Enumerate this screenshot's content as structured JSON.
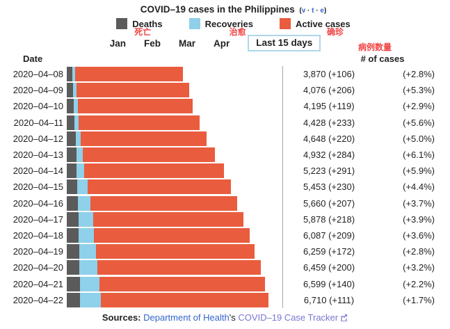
{
  "title": {
    "main": "COVID–19 cases in the Philippines",
    "vte_open": "(",
    "vte_links": [
      "v",
      "t",
      "e"
    ],
    "vte_sep": " · ",
    "vte_close": ")"
  },
  "legend": {
    "items": [
      {
        "label": "Deaths",
        "color": "#5b5b5b",
        "annotation": "死亡"
      },
      {
        "label": "Recoveries",
        "color": "#8fd0ea",
        "annotation": "治愈"
      },
      {
        "label": "Active cases",
        "color": "#e95c3e",
        "annotation": "确珍"
      }
    ]
  },
  "tabs": {
    "months": [
      "Jan",
      "Feb",
      "Mar",
      "Apr"
    ],
    "active": "Last 15 days"
  },
  "column_headers": {
    "date": "Date",
    "cases": "# of cases",
    "cases_annotation": "病例数量"
  },
  "chart_data": {
    "type": "bar",
    "orientation": "horizontal",
    "stacked": true,
    "title": "COVID–19 cases in the Philippines",
    "xlabel": "# of cases",
    "ylabel": "Date",
    "xlim": [
      0,
      7175
    ],
    "grid": false,
    "legend_position": "top",
    "categories": [
      "2020–04–08",
      "2020–04–09",
      "2020–04–10",
      "2020–04–11",
      "2020–04–12",
      "2020–04–13",
      "2020–04–14",
      "2020–04–15",
      "2020–04–16",
      "2020–04–17",
      "2020–04–18",
      "2020–04–19",
      "2020–04–20",
      "2020–04–21",
      "2020–04–22"
    ],
    "totals": [
      3870,
      4076,
      4195,
      4428,
      4648,
      4932,
      5223,
      5453,
      5660,
      5878,
      6087,
      6259,
      6459,
      6599,
      6710
    ],
    "daily_new": [
      106,
      206,
      119,
      233,
      220,
      284,
      291,
      230,
      207,
      218,
      209,
      172,
      200,
      140,
      111
    ],
    "pct_change": [
      "+2.8%",
      "+5.3%",
      "+2.9%",
      "+5.6%",
      "+5.0%",
      "+6.1%",
      "+5.9%",
      "+4.4%",
      "+3.7%",
      "+3.9%",
      "+3.6%",
      "+2.8%",
      "+3.2%",
      "+2.2%",
      "+1.7%"
    ],
    "series": [
      {
        "name": "Deaths",
        "color": "#5b5b5b",
        "estimated_from_pixels": true,
        "values": [
          182,
          203,
          221,
          247,
          297,
          315,
          335,
          349,
          362,
          387,
          397,
          409,
          428,
          437,
          446
        ]
      },
      {
        "name": "Recoveries",
        "color": "#8fd0ea",
        "estimated_from_pixels": true,
        "values": [
          96,
          124,
          140,
          157,
          159,
          208,
          242,
          353,
          435,
          487,
          516,
          575,
          600,
          654,
          693
        ]
      },
      {
        "name": "Active cases",
        "color": "#e95c3e",
        "values": [
          3592,
          3749,
          3834,
          4024,
          4192,
          4409,
          4646,
          4751,
          4863,
          5004,
          5174,
          5275,
          5431,
          5508,
          5571
        ]
      }
    ],
    "value_labels": [
      "3,870 (+106)",
      "4,076 (+206)",
      "4,195 (+119)",
      "4,428 (+233)",
      "4,648 (+220)",
      "4,932 (+284)",
      "5,223 (+291)",
      "5,453 (+230)",
      "5,660 (+207)",
      "5,878 (+218)",
      "6,087 (+209)",
      "6,259 (+172)",
      "6,459 (+200)",
      "6,599 (+140)",
      "6,710 (+111)"
    ],
    "pct_labels": [
      "(+2.8%)",
      "(+5.3%)",
      "(+2.9%)",
      "(+5.6%)",
      "(+5.0%)",
      "(+6.1%)",
      "(+5.9%)",
      "(+4.4%)",
      "(+3.7%)",
      "(+3.9%)",
      "(+3.6%)",
      "(+2.8%)",
      "(+3.2%)",
      "(+2.2%)",
      "(+1.7%)"
    ]
  },
  "colors": {
    "deaths": "#5b5b5b",
    "recoveries": "#8fd0ea",
    "active": "#e95c3e",
    "axis_line": "#a2a9b1",
    "annotation_red": "#f04444",
    "link_blue": "#3366cc",
    "link_visited": "#7878d2"
  },
  "footer": {
    "sources_label": "Sources:",
    "link1": "Department of Health",
    "possessive": "'s",
    "link2": "COVID–19 Case Tracker"
  }
}
